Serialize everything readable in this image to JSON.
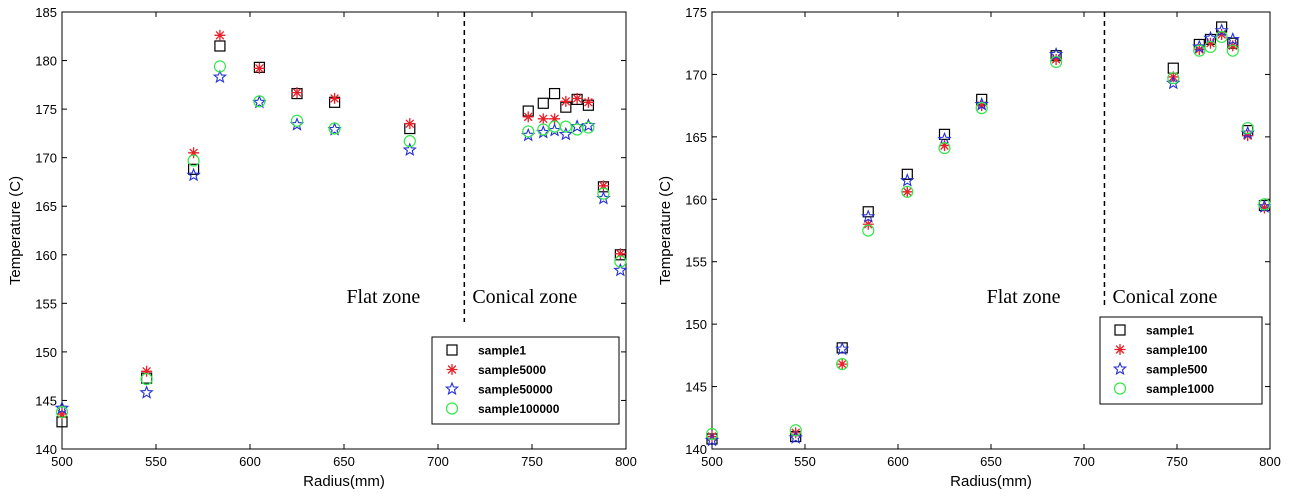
{
  "colors": {
    "black": "#000000",
    "red": "#e8202a",
    "blue": "#2330d8",
    "green": "#33e64a"
  },
  "chart_data": [
    {
      "type": "scatter",
      "title": "",
      "xlabel": "Radius(mm)",
      "ylabel": "Temperature (C)",
      "xlim": [
        500,
        800
      ],
      "ylim": [
        140,
        185
      ],
      "xticks": [
        "500",
        "550",
        "600",
        "650",
        "700",
        "750",
        "800"
      ],
      "yticks": [
        "140",
        "145",
        "150",
        "155",
        "160",
        "165",
        "170",
        "175",
        "180",
        "185"
      ],
      "divider_x": 714,
      "zone_labels": {
        "left": "Flat zone",
        "right": "Conical zone"
      },
      "legend_position": "bottom-right",
      "series": [
        {
          "name": "sample1",
          "marker": "square",
          "color": "#000000",
          "points": [
            [
              500,
              142.8
            ],
            [
              545,
              147.3
            ],
            [
              570,
              168.8
            ],
            [
              584,
              181.5
            ],
            [
              605,
              179.3
            ],
            [
              625,
              176.6
            ],
            [
              645,
              175.7
            ],
            [
              685,
              173.0
            ],
            [
              748,
              174.8
            ],
            [
              756,
              175.6
            ],
            [
              762,
              176.6
            ],
            [
              768,
              175.2
            ],
            [
              774,
              176.0
            ],
            [
              780,
              175.4
            ],
            [
              788,
              167.0
            ],
            [
              797,
              160.0
            ]
          ]
        },
        {
          "name": "sample5000",
          "marker": "asterisk",
          "color": "#e8202a",
          "points": [
            [
              500,
              143.6
            ],
            [
              545,
              148.0
            ],
            [
              570,
              170.5
            ],
            [
              584,
              182.6
            ],
            [
              605,
              179.2
            ],
            [
              625,
              176.7
            ],
            [
              645,
              176.1
            ],
            [
              685,
              173.5
            ],
            [
              748,
              174.2
            ],
            [
              756,
              174.0
            ],
            [
              762,
              174.0
            ],
            [
              768,
              175.8
            ],
            [
              774,
              176.1
            ],
            [
              780,
              175.7
            ],
            [
              788,
              167.1
            ],
            [
              797,
              160.1
            ]
          ]
        },
        {
          "name": "sample50000",
          "marker": "star",
          "color": "#2330d8",
          "points": [
            [
              500,
              144.2
            ],
            [
              545,
              145.8
            ],
            [
              570,
              168.2
            ],
            [
              584,
              178.3
            ],
            [
              605,
              175.7
            ],
            [
              625,
              173.4
            ],
            [
              645,
              172.9
            ],
            [
              685,
              170.8
            ],
            [
              748,
              172.3
            ],
            [
              756,
              172.6
            ],
            [
              762,
              172.8
            ],
            [
              768,
              172.4
            ],
            [
              774,
              173.2
            ],
            [
              780,
              173.3
            ],
            [
              788,
              165.8
            ],
            [
              797,
              158.4
            ]
          ]
        },
        {
          "name": "sample100000",
          "marker": "circle",
          "color": "#33e64a",
          "points": [
            [
              500,
              143.8
            ],
            [
              545,
              147.2
            ],
            [
              570,
              169.7
            ],
            [
              584,
              179.4
            ],
            [
              605,
              175.8
            ],
            [
              625,
              173.8
            ],
            [
              645,
              173.0
            ],
            [
              685,
              171.7
            ],
            [
              748,
              172.7
            ],
            [
              756,
              172.9
            ],
            [
              762,
              173.2
            ],
            [
              768,
              173.2
            ],
            [
              774,
              172.9
            ],
            [
              780,
              173.1
            ],
            [
              788,
              166.3
            ],
            [
              797,
              159.3
            ]
          ]
        }
      ]
    },
    {
      "type": "scatter",
      "title": "",
      "xlabel": "Radius(mm)",
      "ylabel": "Temperature (C)",
      "xlim": [
        500,
        800
      ],
      "ylim": [
        140,
        175
      ],
      "xticks": [
        "500",
        "550",
        "600",
        "650",
        "700",
        "750",
        "800"
      ],
      "yticks": [
        "140",
        "145",
        "150",
        "155",
        "160",
        "165",
        "170",
        "175"
      ],
      "divider_x": 711,
      "zone_labels": {
        "left": "Flat zone",
        "right": "Conical zone"
      },
      "legend_position": "bottom-right",
      "series": [
        {
          "name": "sample1",
          "marker": "square",
          "color": "#000000",
          "points": [
            [
              500,
              140.8
            ],
            [
              545,
              141.0
            ],
            [
              570,
              148.1
            ],
            [
              584,
              159.0
            ],
            [
              605,
              162.0
            ],
            [
              625,
              165.2
            ],
            [
              645,
              168.0
            ],
            [
              685,
              171.5
            ],
            [
              748,
              170.5
            ],
            [
              762,
              172.4
            ],
            [
              768,
              172.8
            ],
            [
              774,
              173.8
            ],
            [
              780,
              172.5
            ],
            [
              788,
              165.5
            ],
            [
              797,
              159.5
            ]
          ]
        },
        {
          "name": "sample100",
          "marker": "asterisk",
          "color": "#e8202a",
          "points": [
            [
              500,
              141.0
            ],
            [
              545,
              141.3
            ],
            [
              570,
              146.8
            ],
            [
              584,
              158.0
            ],
            [
              605,
              160.6
            ],
            [
              625,
              164.3
            ],
            [
              645,
              167.5
            ],
            [
              685,
              171.2
            ],
            [
              748,
              169.8
            ],
            [
              762,
              172.0
            ],
            [
              768,
              172.5
            ],
            [
              774,
              173.2
            ],
            [
              780,
              172.3
            ],
            [
              788,
              165.1
            ],
            [
              797,
              159.3
            ]
          ]
        },
        {
          "name": "sample500",
          "marker": "star",
          "color": "#2330d8",
          "points": [
            [
              500,
              140.7
            ],
            [
              545,
              140.9
            ],
            [
              570,
              148.0
            ],
            [
              584,
              158.6
            ],
            [
              605,
              161.5
            ],
            [
              625,
              164.8
            ],
            [
              645,
              167.6
            ],
            [
              685,
              171.6
            ],
            [
              748,
              169.3
            ],
            [
              762,
              172.2
            ],
            [
              768,
              172.9
            ],
            [
              774,
              173.5
            ],
            [
              780,
              172.8
            ],
            [
              788,
              165.3
            ],
            [
              797,
              159.4
            ]
          ]
        },
        {
          "name": "sample1000",
          "marker": "circle",
          "color": "#33e64a",
          "points": [
            [
              500,
              141.2
            ],
            [
              545,
              141.5
            ],
            [
              570,
              146.8
            ],
            [
              584,
              157.5
            ],
            [
              605,
              160.6
            ],
            [
              625,
              164.1
            ],
            [
              645,
              167.3
            ],
            [
              685,
              171.0
            ],
            [
              748,
              169.7
            ],
            [
              762,
              171.9
            ],
            [
              768,
              172.2
            ],
            [
              774,
              173.0
            ],
            [
              780,
              171.9
            ],
            [
              788,
              165.7
            ],
            [
              797,
              159.6
            ]
          ]
        }
      ]
    }
  ]
}
